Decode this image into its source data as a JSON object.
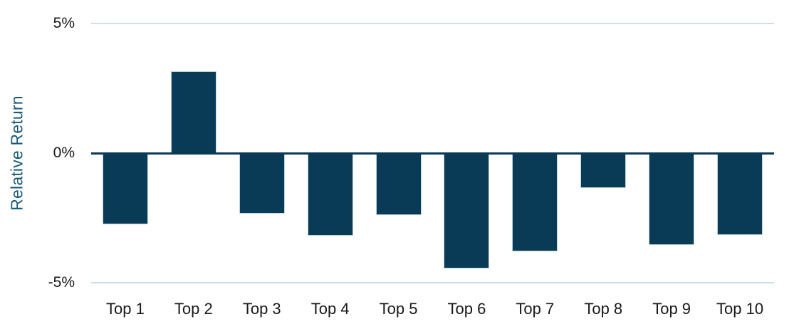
{
  "chart_data": {
    "type": "bar",
    "title": "",
    "categories": [
      "Top 1",
      "Top 2",
      "Top 3",
      "Top 4",
      "Top 5",
      "Top 6",
      "Top 7",
      "Top 8",
      "Top 9",
      "Top 10"
    ],
    "values": [
      -2.75,
      3.15,
      -2.35,
      -3.2,
      -2.4,
      -4.45,
      -3.8,
      -1.35,
      -3.55,
      -3.15
    ],
    "xlabel": "",
    "ylabel": "Relative Return",
    "yticks": [
      {
        "value": 5,
        "label": "5%"
      },
      {
        "value": 0,
        "label": "0%"
      },
      {
        "value": -5,
        "label": "-5%"
      }
    ],
    "ylim": [
      -5.5,
      5
    ],
    "grid": "horizontal-at-5-and-minus-5",
    "legend_position": "none"
  },
  "colors": {
    "bar_fill": "#093A56",
    "bar_border": "#BFD3DE",
    "zero_line": "#093A56",
    "gridline": "#CCDEE9",
    "axis_title_text": "#19597A",
    "tick_label_text": "#191919",
    "background": "#FFFFFF"
  }
}
